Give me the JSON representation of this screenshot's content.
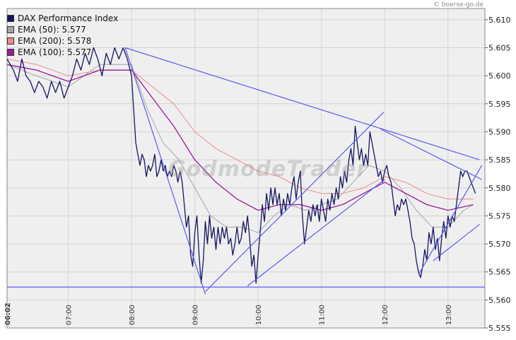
{
  "credit": "© boerse-go.de",
  "watermark": "GodmodeTrader",
  "chart_data": {
    "type": "line",
    "title": "",
    "xlabel": "",
    "ylabel": "",
    "ylim": [
      5.555,
      5.612
    ],
    "xlim": [
      "06:02",
      "13:35"
    ],
    "y_ticks": [
      "5.555",
      "5.560",
      "5.565",
      "5.570",
      "5.575",
      "5.580",
      "5.585",
      "5.590",
      "5.595",
      "5.600",
      "5.605",
      "5.610"
    ],
    "x_ticks": [
      "06:02",
      "07:00",
      "08:00",
      "09:00",
      "10:00",
      "11:00",
      "12:00",
      "13:00"
    ],
    "grid": true,
    "legend_position": "top-left",
    "colors": {
      "plot_bg": "#efefef",
      "grid": "#d4d4d4",
      "trendlines": "#5b5bef",
      "dax": "#151560",
      "ema50": "#a6a6a6",
      "ema200": "#f08a8a",
      "ema100": "#9a1a9a"
    },
    "legend": [
      {
        "label": "DAX Performance Index",
        "color": "#151560"
      },
      {
        "label": "EMA (50): 5.577",
        "color": "#a6a6a6"
      },
      {
        "label": "EMA (200): 5.578",
        "color": "#f08a8a"
      },
      {
        "label": "EMA (100): 5.577",
        "color": "#9a1a9a"
      }
    ],
    "series": [
      {
        "name": "DAX Performance Index",
        "color": "#151560",
        "width": 1.3,
        "points": [
          [
            "06:02",
            5.603
          ],
          [
            "06:08",
            5.601
          ],
          [
            "06:12",
            5.599
          ],
          [
            "06:16",
            5.603
          ],
          [
            "06:20",
            5.6
          ],
          [
            "06:24",
            5.599
          ],
          [
            "06:28",
            5.597
          ],
          [
            "06:32",
            5.599
          ],
          [
            "06:36",
            5.598
          ],
          [
            "06:40",
            5.596
          ],
          [
            "06:44",
            5.599
          ],
          [
            "06:48",
            5.597
          ],
          [
            "06:52",
            5.599
          ],
          [
            "06:56",
            5.596
          ],
          [
            "07:00",
            5.598
          ],
          [
            "07:04",
            5.6
          ],
          [
            "07:08",
            5.603
          ],
          [
            "07:12",
            5.601
          ],
          [
            "07:16",
            5.604
          ],
          [
            "07:20",
            5.602
          ],
          [
            "07:24",
            5.605
          ],
          [
            "07:28",
            5.603
          ],
          [
            "07:32",
            5.6
          ],
          [
            "07:36",
            5.604
          ],
          [
            "07:40",
            5.602
          ],
          [
            "07:44",
            5.605
          ],
          [
            "07:48",
            5.603
          ],
          [
            "07:52",
            5.605
          ],
          [
            "07:56",
            5.603
          ],
          [
            "08:00",
            5.6
          ],
          [
            "08:02",
            5.594
          ],
          [
            "08:04",
            5.588
          ],
          [
            "08:06",
            5.586
          ],
          [
            "08:08",
            5.584
          ],
          [
            "08:10",
            5.586
          ],
          [
            "08:12",
            5.585
          ],
          [
            "08:14",
            5.582
          ],
          [
            "08:16",
            5.584
          ],
          [
            "08:18",
            5.583
          ],
          [
            "08:20",
            5.584
          ],
          [
            "08:22",
            5.586
          ],
          [
            "08:24",
            5.582
          ],
          [
            "08:26",
            5.583
          ],
          [
            "08:28",
            5.585
          ],
          [
            "08:30",
            5.583
          ],
          [
            "08:32",
            5.584
          ],
          [
            "08:34",
            5.582
          ],
          [
            "08:36",
            5.583
          ],
          [
            "08:38",
            5.582
          ],
          [
            "08:40",
            5.584
          ],
          [
            "08:42",
            5.583
          ],
          [
            "08:44",
            5.581
          ],
          [
            "08:46",
            5.583
          ],
          [
            "08:48",
            5.581
          ],
          [
            "08:50",
            5.577
          ],
          [
            "08:52",
            5.573
          ],
          [
            "08:54",
            5.575
          ],
          [
            "08:56",
            5.568
          ],
          [
            "08:58",
            5.566
          ],
          [
            "09:00",
            5.572
          ],
          [
            "09:02",
            5.575
          ],
          [
            "09:04",
            5.568
          ],
          [
            "09:06",
            5.563
          ],
          [
            "09:08",
            5.567
          ],
          [
            "09:10",
            5.574
          ],
          [
            "09:12",
            5.57
          ],
          [
            "09:14",
            5.575
          ],
          [
            "09:16",
            5.571
          ],
          [
            "09:18",
            5.573
          ],
          [
            "09:20",
            5.569
          ],
          [
            "09:22",
            5.573
          ],
          [
            "09:24",
            5.57
          ],
          [
            "09:26",
            5.573
          ],
          [
            "09:28",
            5.571
          ],
          [
            "09:30",
            5.573
          ],
          [
            "09:32",
            5.57
          ],
          [
            "09:34",
            5.571
          ],
          [
            "09:36",
            5.568
          ],
          [
            "09:38",
            5.57
          ],
          [
            "09:40",
            5.573
          ],
          [
            "09:42",
            5.57
          ],
          [
            "09:44",
            5.571
          ],
          [
            "09:46",
            5.574
          ],
          [
            "09:48",
            5.572
          ],
          [
            "09:50",
            5.575
          ],
          [
            "09:52",
            5.571
          ],
          [
            "09:54",
            5.566
          ],
          [
            "09:56",
            5.568
          ],
          [
            "09:58",
            5.563
          ],
          [
            "10:00",
            5.568
          ],
          [
            "10:02",
            5.572
          ],
          [
            "10:04",
            5.577
          ],
          [
            "10:06",
            5.574
          ],
          [
            "10:08",
            5.579
          ],
          [
            "10:10",
            5.576
          ],
          [
            "10:12",
            5.58
          ],
          [
            "10:14",
            5.577
          ],
          [
            "10:16",
            5.58
          ],
          [
            "10:18",
            5.577
          ],
          [
            "10:20",
            5.579
          ],
          [
            "10:22",
            5.575
          ],
          [
            "10:24",
            5.578
          ],
          [
            "10:26",
            5.576
          ],
          [
            "10:28",
            5.579
          ],
          [
            "10:30",
            5.577
          ],
          [
            "10:32",
            5.58
          ],
          [
            "10:34",
            5.582
          ],
          [
            "10:36",
            5.578
          ],
          [
            "10:38",
            5.581
          ],
          [
            "10:40",
            5.583
          ],
          [
            "10:42",
            5.575
          ],
          [
            "10:44",
            5.57
          ],
          [
            "10:46",
            5.573
          ],
          [
            "10:48",
            5.576
          ],
          [
            "10:50",
            5.574
          ],
          [
            "10:52",
            5.577
          ],
          [
            "10:54",
            5.575
          ],
          [
            "10:56",
            5.577
          ],
          [
            "10:58",
            5.574
          ],
          [
            "11:00",
            5.578
          ],
          [
            "11:02",
            5.576
          ],
          [
            "11:04",
            5.574
          ],
          [
            "11:06",
            5.578
          ],
          [
            "11:08",
            5.576
          ],
          [
            "11:10",
            5.579
          ],
          [
            "11:12",
            5.577
          ],
          [
            "11:14",
            5.58
          ],
          [
            "11:16",
            5.578
          ],
          [
            "11:18",
            5.582
          ],
          [
            "11:20",
            5.58
          ],
          [
            "11:22",
            5.583
          ],
          [
            "11:24",
            5.581
          ],
          [
            "11:26",
            5.585
          ],
          [
            "11:28",
            5.587
          ],
          [
            "11:30",
            5.584
          ],
          [
            "11:32",
            5.591
          ],
          [
            "11:34",
            5.588
          ],
          [
            "11:36",
            5.585
          ],
          [
            "11:38",
            5.587
          ],
          [
            "11:40",
            5.584
          ],
          [
            "11:42",
            5.586
          ],
          [
            "11:44",
            5.584
          ],
          [
            "11:46",
            5.59
          ],
          [
            "11:48",
            5.588
          ],
          [
            "11:50",
            5.586
          ],
          [
            "11:52",
            5.584
          ],
          [
            "11:54",
            5.582
          ],
          [
            "11:56",
            5.583
          ],
          [
            "11:58",
            5.581
          ],
          [
            "12:00",
            5.583
          ],
          [
            "12:02",
            5.584
          ],
          [
            "12:04",
            5.582
          ],
          [
            "12:06",
            5.581
          ],
          [
            "12:08",
            5.578
          ],
          [
            "12:10",
            5.575
          ],
          [
            "12:12",
            5.577
          ],
          [
            "12:14",
            5.576
          ],
          [
            "12:16",
            5.578
          ],
          [
            "12:18",
            5.577
          ],
          [
            "12:20",
            5.578
          ],
          [
            "12:22",
            5.576
          ],
          [
            "12:24",
            5.574
          ],
          [
            "12:26",
            5.571
          ],
          [
            "12:28",
            5.57
          ],
          [
            "12:30",
            5.567
          ],
          [
            "12:32",
            5.565
          ],
          [
            "12:34",
            5.564
          ],
          [
            "12:36",
            5.566
          ],
          [
            "12:38",
            5.569
          ],
          [
            "12:40",
            5.567
          ],
          [
            "12:42",
            5.572
          ],
          [
            "12:44",
            5.57
          ],
          [
            "12:46",
            5.573
          ],
          [
            "12:48",
            5.569
          ],
          [
            "12:50",
            5.571
          ],
          [
            "12:52",
            5.567
          ],
          [
            "12:54",
            5.571
          ],
          [
            "12:56",
            5.574
          ],
          [
            "12:58",
            5.571
          ],
          [
            "13:00",
            5.575
          ],
          [
            "13:02",
            5.573
          ],
          [
            "13:04",
            5.575
          ],
          [
            "13:06",
            5.574
          ],
          [
            "13:08",
            5.577
          ],
          [
            "13:10",
            5.58
          ],
          [
            "13:12",
            5.583
          ],
          [
            "13:14",
            5.582
          ],
          [
            "13:16",
            5.583
          ],
          [
            "13:18",
            5.583
          ],
          [
            "13:20",
            5.582
          ],
          [
            "13:22",
            5.581
          ],
          [
            "13:24",
            5.58
          ],
          [
            "13:26",
            5.579
          ]
        ]
      },
      {
        "name": "EMA (50): 5.577",
        "color": "#a6a6a6",
        "width": 1,
        "points": [
          [
            "06:02",
            5.602
          ],
          [
            "06:30",
            5.6
          ],
          [
            "07:00",
            5.598
          ],
          [
            "07:30",
            5.602
          ],
          [
            "08:00",
            5.602
          ],
          [
            "08:15",
            5.594
          ],
          [
            "08:30",
            5.588
          ],
          [
            "08:45",
            5.585
          ],
          [
            "09:00",
            5.58
          ],
          [
            "09:15",
            5.575
          ],
          [
            "09:30",
            5.573
          ],
          [
            "09:45",
            5.573
          ],
          [
            "10:00",
            5.572
          ],
          [
            "10:15",
            5.575
          ],
          [
            "10:30",
            5.577
          ],
          [
            "10:45",
            5.576
          ],
          [
            "11:00",
            5.577
          ],
          [
            "11:15",
            5.578
          ],
          [
            "11:30",
            5.581
          ],
          [
            "11:45",
            5.584
          ],
          [
            "12:00",
            5.583
          ],
          [
            "12:15",
            5.58
          ],
          [
            "12:30",
            5.576
          ],
          [
            "12:45",
            5.573
          ],
          [
            "13:00",
            5.573
          ],
          [
            "13:15",
            5.576
          ],
          [
            "13:24",
            5.577
          ]
        ]
      },
      {
        "name": "EMA (200): 5.578",
        "color": "#f08a8a",
        "width": 1,
        "points": [
          [
            "06:02",
            5.603
          ],
          [
            "06:30",
            5.602
          ],
          [
            "07:00",
            5.6
          ],
          [
            "07:30",
            5.601
          ],
          [
            "08:00",
            5.601
          ],
          [
            "08:20",
            5.598
          ],
          [
            "08:40",
            5.595
          ],
          [
            "09:00",
            5.59
          ],
          [
            "09:20",
            5.587
          ],
          [
            "09:40",
            5.585
          ],
          [
            "10:00",
            5.583
          ],
          [
            "10:20",
            5.582
          ],
          [
            "10:40",
            5.58
          ],
          [
            "11:00",
            5.579
          ],
          [
            "11:20",
            5.579
          ],
          [
            "11:40",
            5.58
          ],
          [
            "12:00",
            5.582
          ],
          [
            "12:20",
            5.581
          ],
          [
            "12:40",
            5.579
          ],
          [
            "13:00",
            5.578
          ],
          [
            "13:24",
            5.578
          ]
        ]
      },
      {
        "name": "EMA (100): 5.577",
        "color": "#9a1a9a",
        "width": 1.3,
        "points": [
          [
            "06:02",
            5.602
          ],
          [
            "06:30",
            5.601
          ],
          [
            "07:00",
            5.599
          ],
          [
            "07:30",
            5.601
          ],
          [
            "08:00",
            5.601
          ],
          [
            "08:20",
            5.596
          ],
          [
            "08:40",
            5.591
          ],
          [
            "09:00",
            5.585
          ],
          [
            "09:20",
            5.581
          ],
          [
            "09:40",
            5.578
          ],
          [
            "10:00",
            5.576
          ],
          [
            "10:20",
            5.577
          ],
          [
            "10:40",
            5.577
          ],
          [
            "11:00",
            5.576
          ],
          [
            "11:20",
            5.577
          ],
          [
            "11:40",
            5.579
          ],
          [
            "12:00",
            5.581
          ],
          [
            "12:20",
            5.579
          ],
          [
            "12:40",
            5.577
          ],
          [
            "13:00",
            5.576
          ],
          [
            "13:24",
            5.577
          ]
        ]
      }
    ],
    "trendlines": [
      [
        [
          "07:54",
          5.605
        ],
        [
          "13:30",
          5.585
        ]
      ],
      [
        [
          "07:54",
          5.605
        ],
        [
          "09:10",
          5.561
        ]
      ],
      [
        [
          "09:10",
          5.5615
        ],
        [
          "11:59",
          5.5935
        ]
      ],
      [
        [
          "09:50",
          5.5625
        ],
        [
          "12:00",
          5.5815
        ]
      ],
      [
        [
          "11:56",
          5.5905
        ],
        [
          "13:32",
          5.5815
        ]
      ],
      [
        [
          "12:32",
          5.5645
        ],
        [
          "13:32",
          5.584
        ]
      ],
      [
        [
          "12:46",
          5.567
        ],
        [
          "13:30",
          5.5735
        ]
      ],
      [
        [
          "06:02",
          5.5623
        ],
        [
          "13:35",
          5.5623
        ]
      ]
    ]
  }
}
